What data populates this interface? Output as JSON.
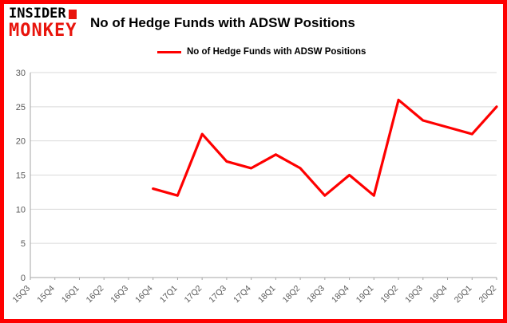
{
  "brand": {
    "line1": "INSIDER",
    "line2": "MONKEY",
    "accent_color": "#e8140c"
  },
  "header": {
    "title": "No of Hedge Funds with ADSW Positions"
  },
  "legend": {
    "label": "No of Hedge Funds with ADSW Positions",
    "color": "#fe0000"
  },
  "chart_data": {
    "type": "line",
    "title": "No of Hedge Funds with ADSW Positions",
    "categories": [
      "15Q3",
      "15Q4",
      "16Q1",
      "16Q2",
      "16Q3",
      "16Q4",
      "17Q1",
      "17Q2",
      "17Q3",
      "17Q4",
      "18Q1",
      "18Q2",
      "18Q3",
      "18Q4",
      "19Q1",
      "19Q2",
      "19Q3",
      "19Q4",
      "20Q1",
      "20Q2"
    ],
    "series": [
      {
        "name": "No of Hedge Funds with ADSW Positions",
        "color": "#fe0000",
        "values": [
          null,
          null,
          null,
          null,
          null,
          13,
          12,
          21,
          17,
          16,
          18,
          16,
          12,
          15,
          12,
          26,
          23,
          22,
          21,
          25
        ]
      }
    ],
    "xlabel": "",
    "ylabel": "",
    "ylim": [
      0,
      30
    ],
    "yticks": [
      0,
      5,
      10,
      15,
      20,
      25,
      30
    ],
    "grid": true,
    "legend_position": "top-left",
    "gridline_color": "#d9d9d9",
    "axis_color": "#a6a6a6",
    "tick_label_color": "#595959"
  }
}
